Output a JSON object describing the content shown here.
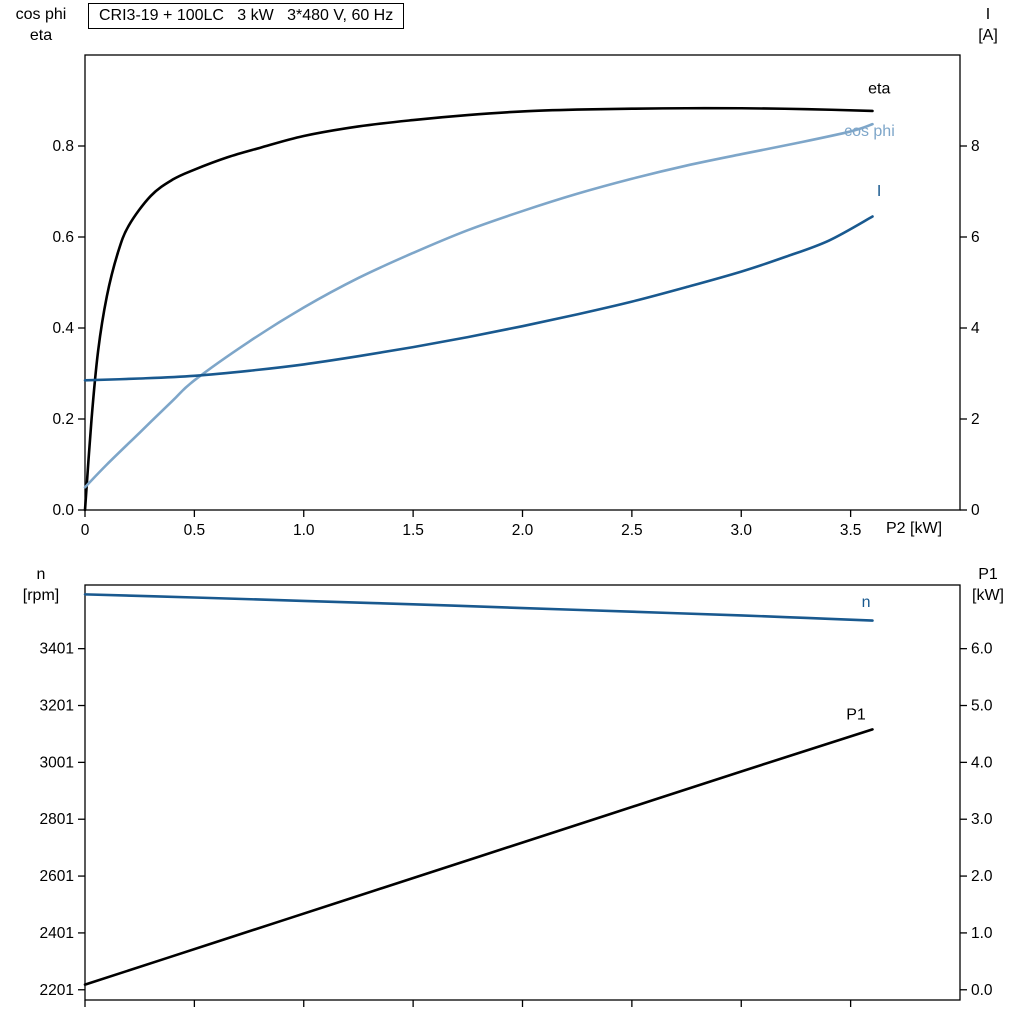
{
  "title": "CRI3-19 + 100LC   3 kW   3*480 V, 60 Hz",
  "axis_titles": {
    "top_left": [
      "cos phi",
      "eta"
    ],
    "top_right": [
      "I",
      "[A]"
    ],
    "bottom_left": [
      "n",
      "[rpm]"
    ],
    "bottom_right": [
      "P1",
      "[kW]"
    ]
  },
  "colors": {
    "black": "#000000",
    "dark_blue": "#19598f",
    "light_blue": "#7ea6c9",
    "frame": "#000000",
    "background": "#ffffff"
  },
  "chart_data": [
    {
      "type": "line",
      "name": "motor-performance-chart",
      "x_axis": {
        "label": "P2 [kW]",
        "min": 0,
        "max": 4.0,
        "ticks": [
          0,
          0.5,
          1,
          1.5,
          2,
          2.5,
          3,
          3.5
        ],
        "tick_labels": [
          "0",
          "0.5",
          "1.0",
          "1.5",
          "2.0",
          "2.5",
          "3.0",
          "3.5"
        ]
      },
      "y_left": {
        "label": "cos phi / eta",
        "min": 0,
        "max": 1.0,
        "ticks": [
          0,
          0.2,
          0.4,
          0.6,
          0.8
        ],
        "tick_labels": [
          "0.0",
          "0.2",
          "0.4",
          "0.6",
          "0.8"
        ]
      },
      "y_right": {
        "label": "I [A]",
        "min": 0,
        "max": 10,
        "ticks": [
          0,
          2,
          4,
          6,
          8
        ],
        "tick_labels": [
          "0",
          "2",
          "4",
          "6",
          "8"
        ]
      },
      "grid": false,
      "series": [
        {
          "name": "eta",
          "y_axis": "left",
          "color": "black",
          "label": "eta",
          "label_at": [
            3.58,
            0.915
          ],
          "points": [
            [
              0,
              0
            ],
            [
              0.03,
              0.2
            ],
            [
              0.06,
              0.35
            ],
            [
              0.1,
              0.47
            ],
            [
              0.15,
              0.565
            ],
            [
              0.2,
              0.625
            ],
            [
              0.3,
              0.69
            ],
            [
              0.4,
              0.726
            ],
            [
              0.5,
              0.748
            ],
            [
              0.65,
              0.775
            ],
            [
              0.8,
              0.796
            ],
            [
              1.0,
              0.822
            ],
            [
              1.25,
              0.843
            ],
            [
              1.5,
              0.857
            ],
            [
              1.75,
              0.868
            ],
            [
              2.0,
              0.876
            ],
            [
              2.25,
              0.88
            ],
            [
              2.5,
              0.882
            ],
            [
              2.75,
              0.883
            ],
            [
              3.0,
              0.883
            ],
            [
              3.3,
              0.881
            ],
            [
              3.6,
              0.877
            ]
          ]
        },
        {
          "name": "cos phi",
          "y_axis": "left",
          "color": "light_blue",
          "label": "cos phi",
          "label_at": [
            3.47,
            0.822
          ],
          "points": [
            [
              0,
              0.05
            ],
            [
              0.1,
              0.1
            ],
            [
              0.25,
              0.17
            ],
            [
              0.4,
              0.24
            ],
            [
              0.5,
              0.285
            ],
            [
              0.75,
              0.37
            ],
            [
              1.0,
              0.445
            ],
            [
              1.25,
              0.51
            ],
            [
              1.5,
              0.565
            ],
            [
              1.75,
              0.615
            ],
            [
              2.0,
              0.657
            ],
            [
              2.25,
              0.695
            ],
            [
              2.5,
              0.728
            ],
            [
              2.75,
              0.757
            ],
            [
              3.0,
              0.782
            ],
            [
              3.25,
              0.806
            ],
            [
              3.5,
              0.832
            ],
            [
              3.6,
              0.848
            ]
          ]
        },
        {
          "name": "I",
          "y_axis": "right",
          "color": "dark_blue",
          "label": "I",
          "label_at": [
            3.62,
            6.9
          ],
          "points": [
            [
              0,
              2.85
            ],
            [
              0.25,
              2.89
            ],
            [
              0.5,
              2.95
            ],
            [
              0.75,
              3.06
            ],
            [
              1.0,
              3.2
            ],
            [
              1.25,
              3.38
            ],
            [
              1.5,
              3.58
            ],
            [
              1.75,
              3.8
            ],
            [
              2.0,
              4.04
            ],
            [
              2.25,
              4.3
            ],
            [
              2.5,
              4.58
            ],
            [
              2.75,
              4.9
            ],
            [
              3.0,
              5.24
            ],
            [
              3.2,
              5.56
            ],
            [
              3.4,
              5.92
            ],
            [
              3.6,
              6.45
            ]
          ]
        }
      ]
    },
    {
      "type": "line",
      "name": "speed-power-chart",
      "x_axis": {
        "label": "",
        "min": 0,
        "max": 4.0,
        "ticks": [
          0,
          0.5,
          1,
          1.5,
          2,
          2.5,
          3,
          3.5
        ],
        "tick_labels": []
      },
      "y_left": {
        "label": "n [rpm]",
        "min": 2165,
        "max": 3625,
        "ticks": [
          2201,
          2401,
          2601,
          2801,
          3001,
          3201,
          3401
        ],
        "tick_labels": [
          "2201",
          "2401",
          "2601",
          "2801",
          "3001",
          "3201",
          "3401"
        ]
      },
      "y_right": {
        "label": "P1 [kW]",
        "min": -0.18,
        "max": 7.12,
        "ticks": [
          0,
          1,
          2,
          3,
          4,
          5,
          6
        ],
        "tick_labels": [
          "0.0",
          "1.0",
          "2.0",
          "3.0",
          "4.0",
          "5.0",
          "6.0"
        ]
      },
      "grid": false,
      "series": [
        {
          "name": "n",
          "y_axis": "left",
          "color": "dark_blue",
          "label": "n",
          "label_at": [
            3.55,
            3548
          ],
          "points": [
            [
              0,
              3592
            ],
            [
              0.5,
              3581
            ],
            [
              1.0,
              3569
            ],
            [
              1.5,
              3557
            ],
            [
              2.0,
              3544
            ],
            [
              2.5,
              3531
            ],
            [
              3.0,
              3518
            ],
            [
              3.3,
              3509
            ],
            [
              3.6,
              3500
            ]
          ]
        },
        {
          "name": "P1",
          "y_axis": "right",
          "color": "black",
          "label": "P1",
          "label_at": [
            3.48,
            4.75
          ],
          "points": [
            [
              0,
              0.09
            ],
            [
              0.6,
              0.84
            ],
            [
              1.2,
              1.59
            ],
            [
              1.8,
              2.34
            ],
            [
              2.4,
              3.09
            ],
            [
              3.0,
              3.84
            ],
            [
              3.6,
              4.58
            ]
          ]
        }
      ]
    }
  ]
}
